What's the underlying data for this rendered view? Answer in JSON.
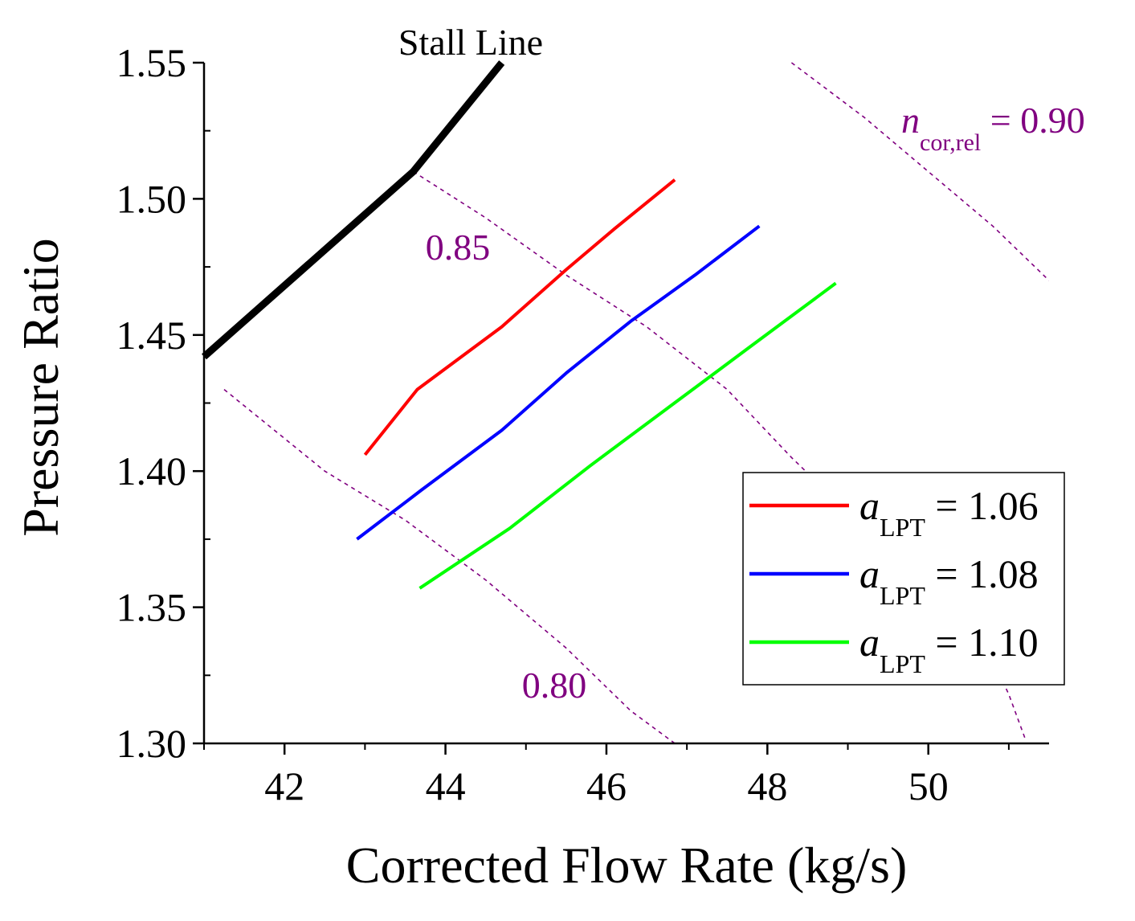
{
  "chart_data": {
    "type": "line",
    "xlabel": "Corrected Flow Rate (kg/s)",
    "ylabel": "Pressure Ratio",
    "xlim": [
      41,
      51.5
    ],
    "ylim": [
      1.3,
      1.55
    ],
    "x_ticks": [
      42,
      44,
      46,
      48,
      50
    ],
    "x_tick_labels": [
      "42",
      "44",
      "46",
      "48",
      "50"
    ],
    "y_ticks": [
      1.3,
      1.35,
      1.4,
      1.45,
      1.5,
      1.55
    ],
    "y_tick_labels": [
      "1.30",
      "1.35",
      "1.40",
      "1.45",
      "1.50",
      "1.55"
    ],
    "colors": {
      "stall": "#000000",
      "speed": "#800080",
      "a106": "#ff0000",
      "a108": "#0000ff",
      "a110": "#00ff00"
    },
    "stall_line": {
      "label": "Stall Line",
      "x": [
        41.0,
        43.6,
        44.7
      ],
      "y": [
        1.442,
        1.51,
        1.55
      ]
    },
    "speed_lines": [
      {
        "name": "speed-080",
        "label": "0.80",
        "x": [
          41.25,
          42.5,
          43.5,
          44.5,
          45.5,
          46.3,
          46.85
        ],
        "y": [
          1.43,
          1.4,
          1.382,
          1.36,
          1.335,
          1.312,
          1.3
        ]
      },
      {
        "name": "speed-085",
        "label": "0.85",
        "x": [
          43.6,
          44.5,
          45.5,
          46.5,
          47.5,
          48.3,
          49.0,
          49.6,
          50.2,
          50.7,
          51.0,
          51.2
        ],
        "y": [
          1.51,
          1.493,
          1.472,
          1.453,
          1.43,
          1.405,
          1.385,
          1.372,
          1.355,
          1.337,
          1.318,
          1.302
        ]
      },
      {
        "name": "speed-090",
        "label_var": "n",
        "label_sub": "cor,rel",
        "label_rest": " = 0.90",
        "x": [
          48.3,
          49.2,
          50.0,
          50.8,
          51.5
        ],
        "y": [
          1.55,
          1.53,
          1.51,
          1.49,
          1.47
        ]
      }
    ],
    "series": [
      {
        "name": "a-lpt-106",
        "label_var": "a",
        "label_sub": "LPT",
        "label_rest": " = 1.06",
        "x": [
          43.0,
          43.65,
          44.7,
          45.5,
          46.1,
          46.85
        ],
        "y": [
          1.406,
          1.43,
          1.453,
          1.474,
          1.489,
          1.507
        ]
      },
      {
        "name": "a-lpt-108",
        "label_var": "a",
        "label_sub": "LPT",
        "label_rest": " = 1.08",
        "x": [
          42.9,
          43.7,
          44.7,
          45.5,
          46.3,
          47.1,
          47.9
        ],
        "y": [
          1.375,
          1.393,
          1.415,
          1.436,
          1.455,
          1.472,
          1.49
        ]
      },
      {
        "name": "a-lpt-110",
        "label_var": "a",
        "label_sub": "LPT",
        "label_rest": " = 1.10",
        "x": [
          43.68,
          44.8,
          45.8,
          46.8,
          47.8,
          48.85
        ],
        "y": [
          1.357,
          1.379,
          1.402,
          1.424,
          1.446,
          1.469
        ]
      }
    ],
    "legend": {
      "position": "lower-right"
    }
  }
}
